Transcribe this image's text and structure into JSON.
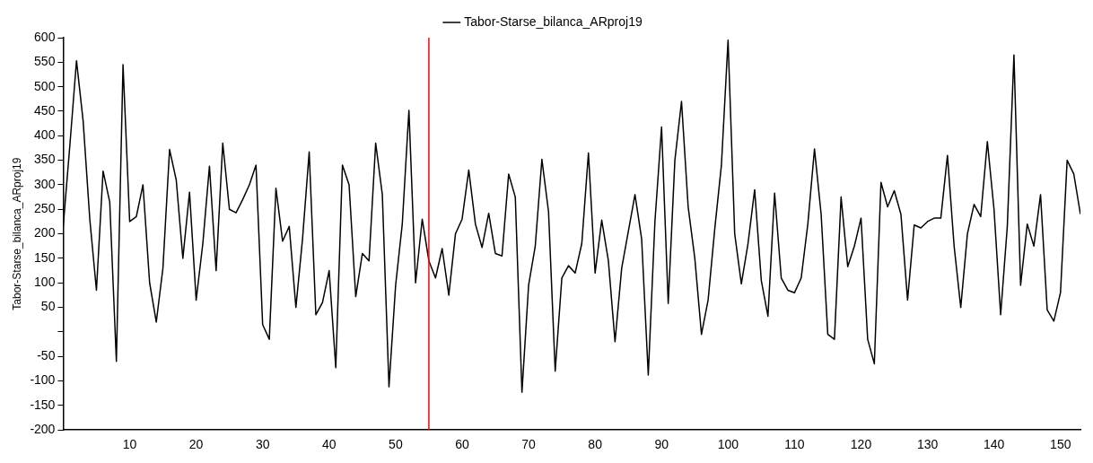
{
  "chart_data": {
    "type": "line",
    "ylabel": "Tabor-Starse_bilanca_ARproj19",
    "legend": "top",
    "grid": false,
    "marker": "none",
    "line_style": "solid",
    "xlim": [
      0,
      153
    ],
    "xticks": [
      10,
      20,
      30,
      40,
      50,
      60,
      70,
      80,
      90,
      100,
      110,
      120,
      130,
      140,
      150
    ],
    "ylim": [
      -200,
      600
    ],
    "yticks": [
      -200,
      -150,
      -100,
      -50,
      {
        "value": 0,
        "label": null
      },
      50,
      100,
      150,
      200,
      250,
      300,
      350,
      400,
      450,
      500,
      550,
      600
    ],
    "ref_lines": [
      {
        "axis": "x",
        "value": 55,
        "color": "#ff0000"
      }
    ],
    "x": [
      0,
      1,
      2,
      3,
      4,
      5,
      6,
      7,
      8,
      9,
      10,
      11,
      12,
      13,
      14,
      15,
      16,
      17,
      18,
      19,
      20,
      21,
      22,
      23,
      24,
      25,
      26,
      27,
      28,
      29,
      30,
      31,
      32,
      33,
      34,
      35,
      36,
      37,
      38,
      39,
      40,
      41,
      42,
      43,
      44,
      45,
      46,
      47,
      48,
      49,
      50,
      51,
      52,
      53,
      54,
      55,
      56,
      57,
      58,
      59,
      60,
      61,
      62,
      63,
      64,
      65,
      66,
      67,
      68,
      69,
      70,
      71,
      72,
      73,
      74,
      75,
      76,
      77,
      78,
      79,
      80,
      81,
      82,
      83,
      84,
      85,
      86,
      87,
      88,
      89,
      90,
      91,
      92,
      93,
      94,
      95,
      96,
      97,
      98,
      99,
      100,
      101,
      102,
      103,
      104,
      105,
      106,
      107,
      108,
      109,
      110,
      111,
      112,
      113,
      114,
      115,
      116,
      117,
      118,
      119,
      120,
      121,
      122,
      123,
      124,
      125,
      126,
      127,
      128,
      129,
      130,
      131,
      132,
      133,
      134,
      135,
      136,
      137,
      138,
      139,
      140,
      141,
      142,
      143,
      144,
      145,
      146,
      147,
      148,
      149,
      150,
      151,
      152,
      153
    ],
    "series": [
      {
        "name": "Tabor-Starse_bilanca_ARproj19",
        "color": "#000000",
        "values": [
          215,
          380,
          553,
          430,
          230,
          85,
          328,
          265,
          -60,
          545,
          225,
          235,
          300,
          100,
          20,
          130,
          372,
          310,
          150,
          285,
          65,
          180,
          338,
          125,
          385,
          250,
          243,
          270,
          300,
          340,
          15,
          -15,
          293,
          185,
          215,
          50,
          190,
          367,
          35,
          60,
          125,
          -73,
          340,
          300,
          72,
          160,
          145,
          385,
          280,
          -112,
          95,
          220,
          452,
          100,
          230,
          145,
          110,
          170,
          75,
          200,
          230,
          330,
          220,
          172,
          242,
          160,
          155,
          322,
          275,
          -123,
          95,
          175,
          352,
          245,
          -80,
          110,
          135,
          120,
          180,
          365,
          120,
          228,
          145,
          -20,
          130,
          205,
          280,
          190,
          -88,
          225,
          418,
          58,
          350,
          470,
          255,
          150,
          -5,
          65,
          210,
          340,
          595,
          200,
          98,
          180,
          290,
          105,
          32,
          283,
          110,
          85,
          80,
          110,
          220,
          373,
          240,
          -5,
          -15,
          275,
          133,
          175,
          232,
          -15,
          -65,
          305,
          255,
          288,
          240,
          65,
          218,
          212,
          225,
          232,
          232,
          360,
          175,
          50,
          200,
          260,
          235,
          388,
          250,
          35,
          215,
          565,
          95,
          220,
          175,
          280,
          45,
          22,
          80,
          350,
          322,
          240
        ]
      }
    ]
  }
}
